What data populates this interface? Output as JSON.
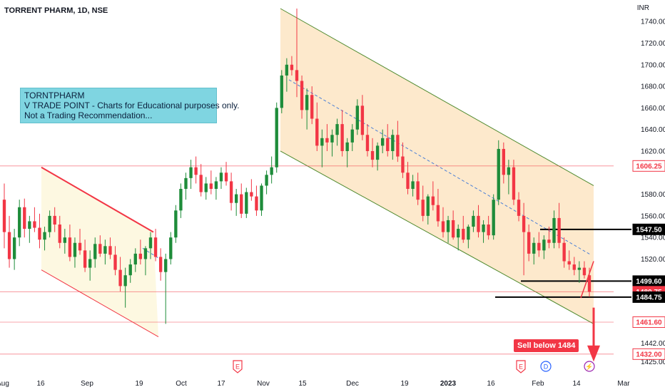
{
  "header": {
    "title": "TORRENT PHARM, 1D, NSE",
    "currency": "INR"
  },
  "annotation": {
    "lines": [
      "TORNTPHARM",
      "V TRADE POINT - Charts for Educational purposes only.",
      "Not a Trading Recommendation..."
    ]
  },
  "sell_label": "Sell below 1484",
  "colors": {
    "up": "#22ab94",
    "up_body": "#1e8c3a",
    "down": "#f23645",
    "channel_fill": "#fde9cc",
    "channel_line": "#4f8a2e",
    "flag_fill": "#fdf8e1",
    "level_line": "#f23645",
    "dashed": "#4a7fd6"
  },
  "chart_data": {
    "type": "candlestick",
    "title": "TORRENT PHARM, 1D, NSE",
    "y_axis": {
      "ticks": [
        1740,
        1720,
        1700,
        1680,
        1660,
        1640,
        1620,
        1580,
        1560,
        1540,
        1520,
        1442,
        1425
      ],
      "tick_labels": [
        "1740.00",
        "1720.00",
        "1700.00",
        "1680.00",
        "1660.00",
        "1640.00",
        "1620.00",
        "1580.00",
        "1560.00",
        "1540.00",
        "1520.00",
        "1442.00",
        "1425.00"
      ],
      "range": [
        1420,
        1752
      ],
      "currency": "INR",
      "position": "right"
    },
    "x_axis": {
      "labels": [
        "Aug",
        "16",
        "Sep",
        "19",
        "Oct",
        "17",
        "Nov",
        "15",
        "Dec",
        "19",
        "2023",
        "16",
        "Feb",
        "14",
        "Mar"
      ],
      "bold": [
        "2023"
      ]
    },
    "price_labels": [
      {
        "value": 1606.25,
        "text": "1606.25",
        "style": "red"
      },
      {
        "value": 1547.5,
        "text": "1547.50",
        "style": "black"
      },
      {
        "value": 1499.6,
        "text": "1499.60",
        "style": "black"
      },
      {
        "value": 1489.75,
        "text": "1489.75",
        "style": "red"
      },
      {
        "value": 1484.75,
        "text": "1484.75",
        "style": "black"
      },
      {
        "value": 1461.6,
        "text": "1461.60",
        "style": "red"
      },
      {
        "value": 1432.0,
        "text": "1432.00",
        "style": "red"
      }
    ],
    "levels": [
      1606.25,
      1461.6,
      1432.0,
      1489.75
    ],
    "event_markers": [
      {
        "date_label": "Nov",
        "letter": "E",
        "color": "#f23645"
      },
      {
        "date_label": "Feb",
        "letter": "E",
        "color": "#f23645"
      },
      {
        "date_label": "Feb",
        "letter": "D",
        "color": "#2962ff"
      },
      {
        "date_label": "14",
        "letter": "⚡",
        "color": "#9c27b0"
      }
    ],
    "candles": [
      [
        1575,
        1590,
        1530,
        1545
      ],
      [
        1545,
        1560,
        1512,
        1520
      ],
      [
        1520,
        1548,
        1510,
        1540
      ],
      [
        1540,
        1575,
        1532,
        1568
      ],
      [
        1568,
        1576,
        1540,
        1548
      ],
      [
        1548,
        1560,
        1535,
        1555
      ],
      [
        1555,
        1568,
        1545,
        1549
      ],
      [
        1549,
        1562,
        1530,
        1538
      ],
      [
        1538,
        1550,
        1528,
        1545
      ],
      [
        1545,
        1565,
        1540,
        1560
      ],
      [
        1560,
        1568,
        1545,
        1552
      ],
      [
        1552,
        1560,
        1530,
        1535
      ],
      [
        1535,
        1548,
        1525,
        1540
      ],
      [
        1540,
        1552,
        1518,
        1522
      ],
      [
        1522,
        1540,
        1512,
        1535
      ],
      [
        1535,
        1548,
        1524,
        1528
      ],
      [
        1528,
        1538,
        1508,
        1512
      ],
      [
        1512,
        1528,
        1500,
        1520
      ],
      [
        1520,
        1540,
        1512,
        1534
      ],
      [
        1534,
        1542,
        1522,
        1525
      ],
      [
        1525,
        1538,
        1515,
        1532
      ],
      [
        1532,
        1540,
        1520,
        1524
      ],
      [
        1524,
        1532,
        1505,
        1510
      ],
      [
        1510,
        1522,
        1490,
        1495
      ],
      [
        1495,
        1512,
        1475,
        1505
      ],
      [
        1505,
        1520,
        1498,
        1515
      ],
      [
        1515,
        1530,
        1508,
        1525
      ],
      [
        1525,
        1538,
        1515,
        1520
      ],
      [
        1520,
        1532,
        1505,
        1530
      ],
      [
        1530,
        1545,
        1520,
        1540
      ],
      [
        1540,
        1548,
        1518,
        1522
      ],
      [
        1522,
        1530,
        1500,
        1508
      ],
      [
        1508,
        1525,
        1460,
        1520
      ],
      [
        1520,
        1545,
        1515,
        1540
      ],
      [
        1540,
        1570,
        1535,
        1565
      ],
      [
        1565,
        1590,
        1558,
        1585
      ],
      [
        1585,
        1600,
        1575,
        1595
      ],
      [
        1595,
        1612,
        1585,
        1605
      ],
      [
        1605,
        1615,
        1590,
        1598
      ],
      [
        1598,
        1608,
        1578,
        1582
      ],
      [
        1582,
        1596,
        1575,
        1590
      ],
      [
        1590,
        1602,
        1580,
        1585
      ],
      [
        1585,
        1596,
        1575,
        1592
      ],
      [
        1592,
        1605,
        1585,
        1600
      ],
      [
        1600,
        1610,
        1588,
        1592
      ],
      [
        1592,
        1600,
        1565,
        1572
      ],
      [
        1572,
        1585,
        1560,
        1580
      ],
      [
        1580,
        1590,
        1558,
        1562
      ],
      [
        1562,
        1586,
        1558,
        1582
      ],
      [
        1582,
        1594,
        1574,
        1578
      ],
      [
        1578,
        1588,
        1560,
        1565
      ],
      [
        1565,
        1590,
        1560,
        1588
      ],
      [
        1588,
        1602,
        1580,
        1598
      ],
      [
        1598,
        1615,
        1590,
        1605
      ],
      [
        1605,
        1665,
        1600,
        1660
      ],
      [
        1660,
        1695,
        1655,
        1690
      ],
      [
        1690,
        1706,
        1675,
        1700
      ],
      [
        1700,
        1708,
        1690,
        1695
      ],
      [
        1695,
        1752,
        1670,
        1685
      ],
      [
        1685,
        1690,
        1650,
        1658
      ],
      [
        1658,
        1678,
        1640,
        1672
      ],
      [
        1672,
        1680,
        1645,
        1650
      ],
      [
        1650,
        1665,
        1620,
        1625
      ],
      [
        1625,
        1640,
        1605,
        1632
      ],
      [
        1632,
        1645,
        1620,
        1628
      ],
      [
        1628,
        1640,
        1615,
        1635
      ],
      [
        1635,
        1650,
        1625,
        1645
      ],
      [
        1645,
        1658,
        1615,
        1620
      ],
      [
        1620,
        1632,
        1605,
        1628
      ],
      [
        1628,
        1645,
        1620,
        1640
      ],
      [
        1640,
        1668,
        1635,
        1662
      ],
      [
        1662,
        1672,
        1630,
        1635
      ],
      [
        1635,
        1645,
        1615,
        1620
      ],
      [
        1620,
        1632,
        1605,
        1612
      ],
      [
        1612,
        1628,
        1602,
        1625
      ],
      [
        1625,
        1640,
        1618,
        1632
      ],
      [
        1632,
        1645,
        1615,
        1620
      ],
      [
        1620,
        1640,
        1612,
        1635
      ],
      [
        1635,
        1648,
        1610,
        1615
      ],
      [
        1615,
        1628,
        1595,
        1600
      ],
      [
        1600,
        1610,
        1580,
        1585
      ],
      [
        1585,
        1598,
        1578,
        1592
      ],
      [
        1592,
        1600,
        1570,
        1575
      ],
      [
        1575,
        1588,
        1555,
        1560
      ],
      [
        1560,
        1580,
        1552,
        1578
      ],
      [
        1578,
        1592,
        1565,
        1570
      ],
      [
        1570,
        1585,
        1550,
        1555
      ],
      [
        1555,
        1568,
        1540,
        1545
      ],
      [
        1545,
        1560,
        1535,
        1556
      ],
      [
        1556,
        1565,
        1538,
        1540
      ],
      [
        1540,
        1552,
        1528,
        1548
      ],
      [
        1548,
        1560,
        1535,
        1538
      ],
      [
        1538,
        1552,
        1530,
        1550
      ],
      [
        1550,
        1565,
        1545,
        1560
      ],
      [
        1560,
        1570,
        1540,
        1545
      ],
      [
        1545,
        1556,
        1535,
        1552
      ],
      [
        1552,
        1560,
        1538,
        1542
      ],
      [
        1542,
        1580,
        1538,
        1575
      ],
      [
        1575,
        1630,
        1570,
        1622
      ],
      [
        1622,
        1628,
        1590,
        1598
      ],
      [
        1598,
        1612,
        1580,
        1605
      ],
      [
        1605,
        1612,
        1570,
        1575
      ],
      [
        1575,
        1582,
        1555,
        1560
      ],
      [
        1560,
        1572,
        1505,
        1545
      ],
      [
        1545,
        1552,
        1518,
        1525
      ],
      [
        1525,
        1540,
        1515,
        1535
      ],
      [
        1535,
        1545,
        1522,
        1528
      ],
      [
        1528,
        1542,
        1520,
        1538
      ],
      [
        1538,
        1550,
        1530,
        1535
      ],
      [
        1535,
        1565,
        1530,
        1558
      ],
      [
        1558,
        1572,
        1530,
        1535
      ],
      [
        1535,
        1540,
        1512,
        1518
      ],
      [
        1518,
        1528,
        1510,
        1515
      ],
      [
        1515,
        1522,
        1505,
        1510
      ],
      [
        1510,
        1518,
        1498,
        1512
      ],
      [
        1512,
        1518,
        1502,
        1505
      ],
      [
        1505,
        1512,
        1485,
        1489.75
      ]
    ],
    "channels": [
      {
        "name": "",
        "upper": [
          [
            58,
            1605
          ],
          [
            215,
            1545
          ]
        ],
        "lower": [
          [
            58,
            1510
          ],
          [
            222,
            1448
          ]
        ]
      },
      {
        "name": "",
        "upper": [
          [
            393,
            1752
          ],
          [
            832,
            1588
          ]
        ],
        "lower": [
          [
            393,
            1620
          ],
          [
            832,
            1460
          ]
        ]
      }
    ]
  }
}
